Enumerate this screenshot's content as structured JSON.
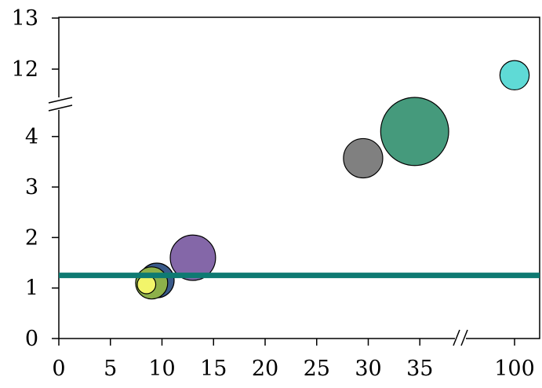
{
  "chart_data": {
    "type": "scatter",
    "title": "",
    "xlabel": "",
    "ylabel": "",
    "grid": false,
    "legend": "none",
    "x_axis": {
      "broken": true,
      "segments": [
        [
          0,
          37
        ],
        [
          100,
          100
        ]
      ],
      "ticks": [
        0,
        5,
        10,
        15,
        20,
        25,
        30,
        35,
        100
      ],
      "tick_labels": [
        "0",
        "5",
        "10",
        "15",
        "20",
        "25",
        "30",
        "35",
        "100"
      ]
    },
    "y_axis": {
      "broken": true,
      "segments": [
        [
          0,
          4.5
        ],
        [
          11.5,
          13
        ]
      ],
      "ticks": [
        0,
        1,
        2,
        3,
        4,
        12,
        13
      ],
      "tick_labels": [
        "0",
        "1",
        "2",
        "3",
        "4",
        "12",
        "13"
      ]
    },
    "reference_line": {
      "y": 1.25,
      "color": "#0e7a72"
    },
    "points": [
      {
        "x": 9.5,
        "y": 1.15,
        "size": 3.5,
        "color": "#3a5a8a"
      },
      {
        "x": 9.0,
        "y": 1.1,
        "size": 3,
        "color": "#8db04a"
      },
      {
        "x": 8.5,
        "y": 1.07,
        "size": 1,
        "color": "#f2f56a"
      },
      {
        "x": 13.0,
        "y": 1.6,
        "size": 6,
        "color": "#8467a8"
      },
      {
        "x": 29.5,
        "y": 3.57,
        "size": 4.5,
        "color": "#808080"
      },
      {
        "x": 34.5,
        "y": 4.1,
        "size": 13.5,
        "color": "#459a7c"
      },
      {
        "x": 100,
        "y": 11.88,
        "size": 2.5,
        "color": "#5fdad6"
      }
    ]
  }
}
